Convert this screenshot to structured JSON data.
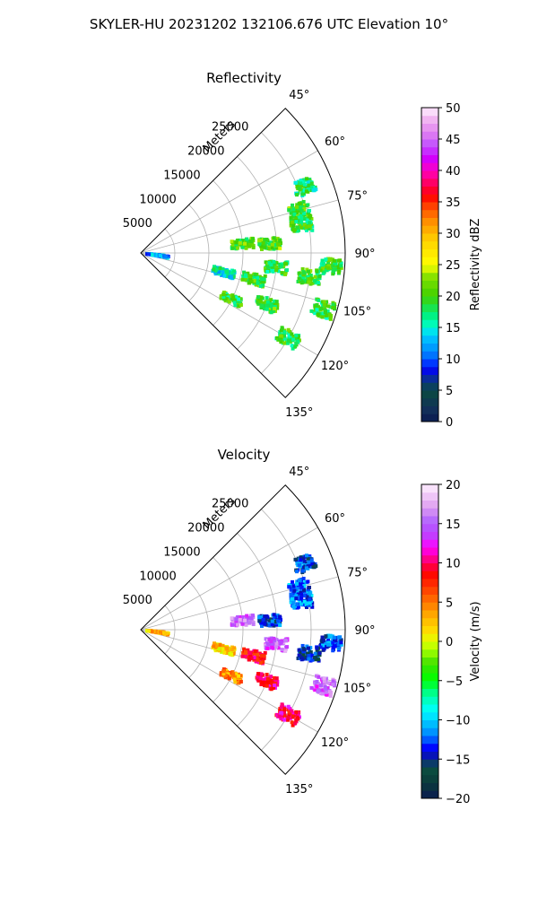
{
  "figure_title": "SKYLER-HU  20231202  132106.676 UTC Elevation 10°",
  "chart_data": [
    {
      "type": "heatmap",
      "projection": "polar-sector",
      "title": "Reflectivity",
      "radial_axis_label": "Meters",
      "radial_ticks": [
        5000,
        10000,
        15000,
        20000,
        25000
      ],
      "radial_tick_labels": [
        "5000",
        "10000",
        "15000",
        "20000",
        "25000"
      ],
      "rlim": [
        0,
        30000
      ],
      "azimuth_range_deg": [
        45,
        135
      ],
      "azimuth_ticks": [
        "45°",
        "60°",
        "75°",
        "90°",
        "105°",
        "120°",
        "135°"
      ],
      "grid": true,
      "colorbar": {
        "label": "Reflectivity dBZ",
        "range": [
          0,
          50
        ],
        "ticks": [
          "0",
          "5",
          "10",
          "15",
          "20",
          "25",
          "30",
          "35",
          "40",
          "45",
          "50"
        ]
      },
      "echo_cells": [
        {
          "azimuth_deg": 103,
          "range_m": 12500,
          "value": 15
        },
        {
          "azimuth_deg": 103,
          "range_m": 17000,
          "value": 20
        },
        {
          "azimuth_deg": 112,
          "range_m": 20000,
          "value": 20
        },
        {
          "azimuth_deg": 117,
          "range_m": 15000,
          "value": 19
        },
        {
          "azimuth_deg": 85,
          "range_m": 15000,
          "value": 20
        },
        {
          "azimuth_deg": 86,
          "range_m": 19000,
          "value": 21
        },
        {
          "azimuth_deg": 75,
          "range_m": 24000,
          "value": 20
        },
        {
          "azimuth_deg": 80,
          "range_m": 24000,
          "value": 19
        },
        {
          "azimuth_deg": 94,
          "range_m": 28000,
          "value": 19
        },
        {
          "azimuth_deg": 98,
          "range_m": 25000,
          "value": 20
        },
        {
          "azimuth_deg": 96,
          "range_m": 20000,
          "value": 19
        },
        {
          "azimuth_deg": 120,
          "range_m": 25000,
          "value": 19
        },
        {
          "azimuth_deg": 68,
          "range_m": 26000,
          "value": 18
        },
        {
          "azimuth_deg": 107,
          "range_m": 28000,
          "value": 19
        },
        {
          "azimuth_deg": 98,
          "range_m": 2500,
          "value": 12
        }
      ]
    },
    {
      "type": "heatmap",
      "projection": "polar-sector",
      "title": "Velocity",
      "radial_axis_label": "Meters",
      "radial_ticks": [
        5000,
        10000,
        15000,
        20000,
        25000
      ],
      "radial_tick_labels": [
        "5000",
        "10000",
        "15000",
        "20000",
        "25000"
      ],
      "rlim": [
        0,
        30000
      ],
      "azimuth_range_deg": [
        45,
        135
      ],
      "azimuth_ticks": [
        "45°",
        "60°",
        "75°",
        "90°",
        "105°",
        "120°",
        "135°"
      ],
      "grid": true,
      "colorbar": {
        "label": "Velocity (m/s)",
        "range": [
          -20,
          20
        ],
        "ticks": [
          "−20",
          "−15",
          "−10",
          "−5",
          "0",
          "5",
          "10",
          "15",
          "20"
        ]
      },
      "echo_cells": [
        {
          "azimuth_deg": 103,
          "range_m": 12500,
          "value": 2
        },
        {
          "azimuth_deg": 103,
          "range_m": 17000,
          "value": 9
        },
        {
          "azimuth_deg": 112,
          "range_m": 20000,
          "value": 10
        },
        {
          "azimuth_deg": 117,
          "range_m": 15000,
          "value": 4
        },
        {
          "azimuth_deg": 85,
          "range_m": 15000,
          "value": 15
        },
        {
          "azimuth_deg": 86,
          "range_m": 19000,
          "value": -13
        },
        {
          "azimuth_deg": 75,
          "range_m": 24000,
          "value": -12
        },
        {
          "azimuth_deg": 80,
          "range_m": 24000,
          "value": -12
        },
        {
          "azimuth_deg": 94,
          "range_m": 28000,
          "value": -13
        },
        {
          "azimuth_deg": 98,
          "range_m": 25000,
          "value": -14
        },
        {
          "azimuth_deg": 96,
          "range_m": 20000,
          "value": 15
        },
        {
          "azimuth_deg": 120,
          "range_m": 25000,
          "value": 10
        },
        {
          "azimuth_deg": 68,
          "range_m": 26000,
          "value": -13
        },
        {
          "azimuth_deg": 107,
          "range_m": 28000,
          "value": 15
        },
        {
          "azimuth_deg": 98,
          "range_m": 2500,
          "value": 3
        }
      ]
    }
  ]
}
